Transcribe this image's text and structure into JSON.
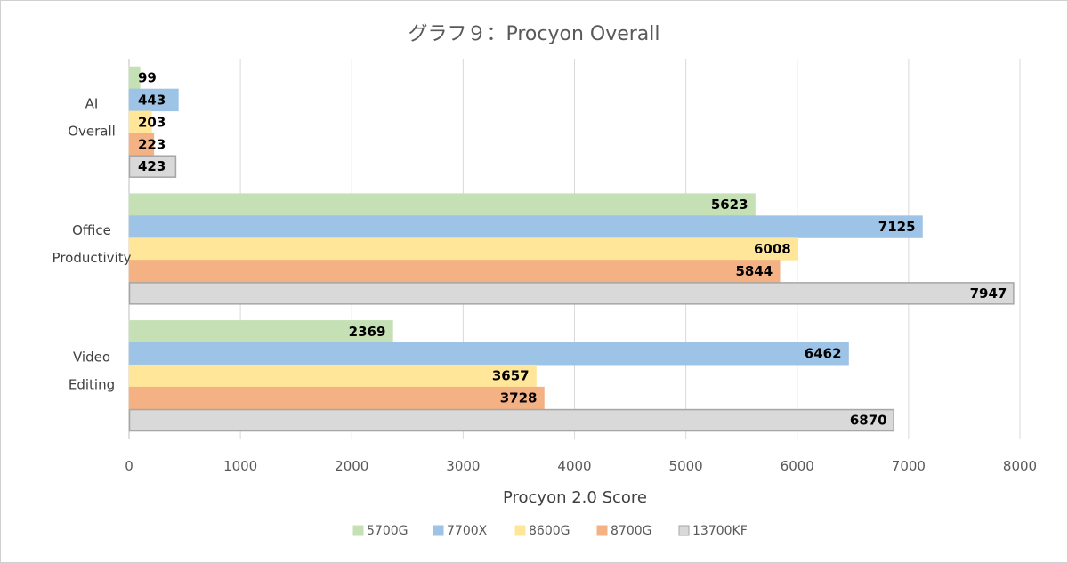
{
  "chart_data": {
    "type": "bar",
    "orientation": "horizontal",
    "title": "グラフ９：Procyon Overall",
    "xlabel": "Procyon 2.0 Score",
    "ylabel": "",
    "xlim": [
      0,
      8000
    ],
    "xticks": [
      "0",
      "1000",
      "2000",
      "3000",
      "4000",
      "5000",
      "6000",
      "7000",
      "8000"
    ],
    "grid": true,
    "legend_position": "bottom",
    "categories": [
      [
        "AI",
        "Overall"
      ],
      [
        "Office",
        "Productivity"
      ],
      [
        "Video",
        "Editing"
      ]
    ],
    "series": [
      {
        "name": "5700G",
        "color": "#c5e0b4",
        "border": "#c5e0b4",
        "values": [
          99,
          5623,
          2369
        ]
      },
      {
        "name": "7700X",
        "color": "#9dc3e6",
        "border": "#9dc3e6",
        "values": [
          443,
          7125,
          6462
        ]
      },
      {
        "name": "8600G",
        "color": "#ffe699",
        "border": "#ffe699",
        "values": [
          203,
          6008,
          3657
        ]
      },
      {
        "name": "8700G",
        "color": "#f4b183",
        "border": "#f4b183",
        "values": [
          223,
          5844,
          3728
        ]
      },
      {
        "name": "13700KF",
        "color": "#d9d9d9",
        "border": "#a6a6a6",
        "values": [
          423,
          7947,
          6870
        ]
      }
    ]
  }
}
